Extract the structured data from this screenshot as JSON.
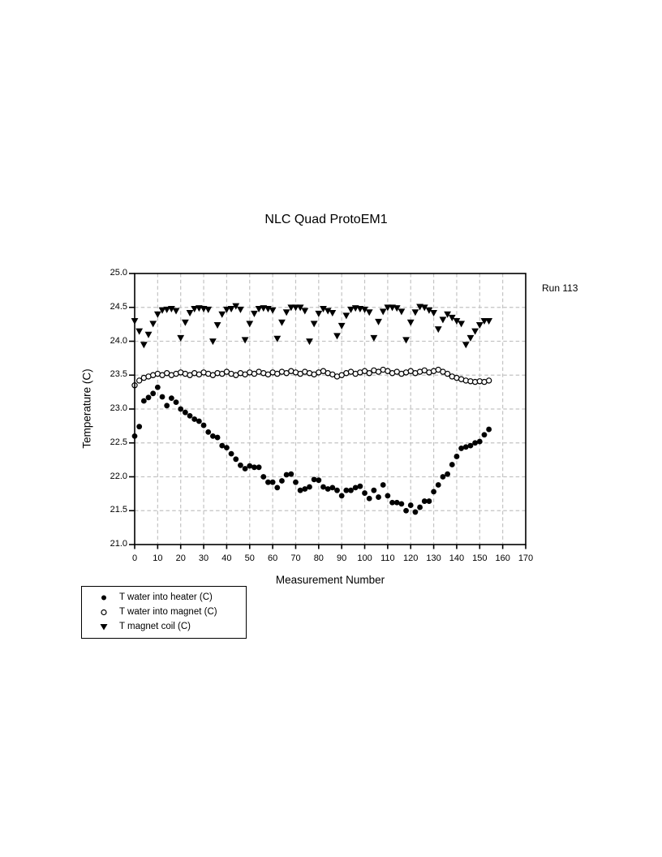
{
  "title": "NLC Quad ProtoEM1",
  "annotation": "Run 113",
  "colors": {
    "foreground": "#000000",
    "background": "#ffffff",
    "gridline": "#c3c3c3"
  },
  "chart_data": {
    "type": "scatter",
    "title": "NLC Quad ProtoEM1",
    "xlabel": "Measurement Number",
    "ylabel": "Temperature (C)",
    "xlim": [
      0,
      170
    ],
    "ylim": [
      21.0,
      25.0
    ],
    "x_ticks": [
      0,
      10,
      20,
      30,
      40,
      50,
      60,
      70,
      80,
      90,
      100,
      110,
      120,
      130,
      140,
      150,
      160,
      170
    ],
    "y_ticks": [
      21.0,
      21.5,
      22.0,
      22.5,
      23.0,
      23.5,
      24.0,
      24.5,
      25.0
    ],
    "grid": {
      "shown": true,
      "style": "dashed",
      "color": "#c3c3c3"
    },
    "legend_position": "below-left, boxed",
    "annotation": "Run 113",
    "x_start": 0,
    "x_step": 2,
    "series": [
      {
        "name": "T water into heater (C)",
        "marker": "filled-circle",
        "color": "#000000",
        "values": [
          22.6,
          22.74,
          23.12,
          23.17,
          23.23,
          23.32,
          23.18,
          23.05,
          23.16,
          23.1,
          23.0,
          22.95,
          22.9,
          22.85,
          22.82,
          22.76,
          22.66,
          22.6,
          22.58,
          22.46,
          22.43,
          22.34,
          22.26,
          22.17,
          22.12,
          22.16,
          22.14,
          22.14,
          22.0,
          21.92,
          21.92,
          21.84,
          21.94,
          22.03,
          22.04,
          21.92,
          21.8,
          21.82,
          21.85,
          21.96,
          21.95,
          21.85,
          21.82,
          21.84,
          21.8,
          21.72,
          21.8,
          21.8,
          21.84,
          21.86,
          21.76,
          21.68,
          21.8,
          21.7,
          21.88,
          21.72,
          21.62,
          21.62,
          21.6,
          21.5,
          21.58,
          21.48,
          21.55,
          21.64,
          21.64,
          21.78,
          21.88,
          22.0,
          22.04,
          22.18,
          22.3,
          22.42,
          22.44,
          22.46,
          22.5,
          22.52,
          22.62,
          22.7
        ]
      },
      {
        "name": "T water into magnet (C)",
        "marker": "open-circle",
        "color": "#000000",
        "values": [
          23.35,
          23.42,
          23.46,
          23.48,
          23.5,
          23.52,
          23.5,
          23.53,
          23.5,
          23.52,
          23.54,
          23.52,
          23.5,
          23.53,
          23.51,
          23.54,
          23.52,
          23.5,
          23.53,
          23.52,
          23.55,
          23.52,
          23.5,
          23.53,
          23.51,
          23.54,
          23.52,
          23.55,
          23.53,
          23.51,
          23.54,
          23.52,
          23.55,
          23.53,
          23.56,
          23.54,
          23.52,
          23.55,
          23.53,
          23.51,
          23.54,
          23.56,
          23.53,
          23.51,
          23.48,
          23.5,
          23.53,
          23.55,
          23.52,
          23.54,
          23.56,
          23.53,
          23.57,
          23.55,
          23.58,
          23.56,
          23.53,
          23.55,
          23.52,
          23.54,
          23.56,
          23.53,
          23.55,
          23.57,
          23.54,
          23.56,
          23.58,
          23.55,
          23.52,
          23.48,
          23.46,
          23.44,
          23.42,
          23.41,
          23.4,
          23.41,
          23.4,
          23.42
        ]
      },
      {
        "name": "T magnet coil (C)",
        "marker": "filled-triangle-down",
        "color": "#000000",
        "values": [
          24.3,
          24.15,
          23.95,
          24.1,
          24.26,
          24.4,
          24.46,
          24.47,
          24.48,
          24.45,
          24.05,
          24.28,
          24.42,
          24.48,
          24.49,
          24.48,
          24.47,
          24.0,
          24.24,
          24.4,
          24.47,
          24.48,
          24.52,
          24.47,
          24.02,
          24.26,
          24.41,
          24.48,
          24.49,
          24.48,
          24.46,
          24.04,
          24.28,
          24.43,
          24.5,
          24.5,
          24.5,
          24.45,
          24.0,
          24.26,
          24.41,
          24.48,
          24.45,
          24.42,
          24.08,
          24.23,
          24.38,
          24.47,
          24.49,
          24.48,
          24.47,
          24.43,
          24.05,
          24.29,
          24.44,
          24.5,
          24.5,
          24.49,
          24.44,
          24.02,
          24.28,
          24.43,
          24.51,
          24.5,
          24.46,
          24.42,
          24.18,
          24.32,
          24.4,
          24.35,
          24.3,
          24.26,
          23.95,
          24.05,
          24.15,
          24.24,
          24.3,
          24.3
        ]
      }
    ]
  }
}
